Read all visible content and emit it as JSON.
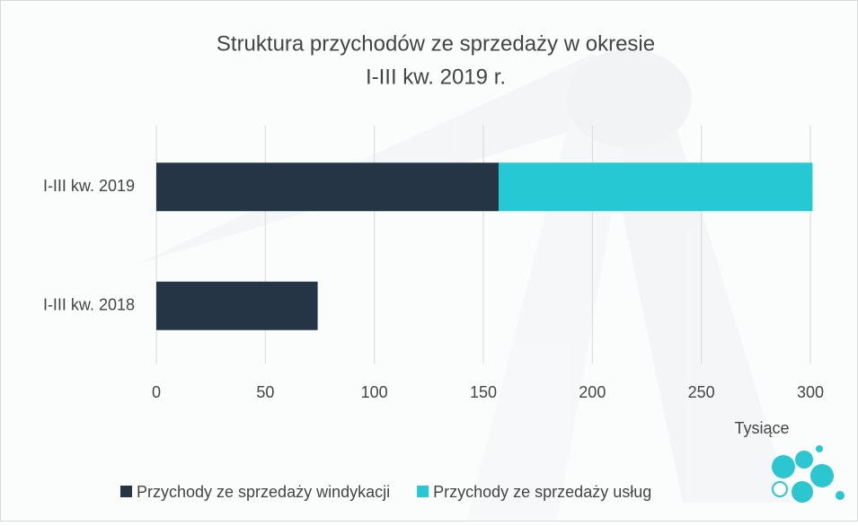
{
  "chart_data": {
    "type": "stacked_bar_horizontal",
    "title": [
      "Struktura przychodów ze sprzedaży w okresie",
      "I-III kw. 2019 r."
    ],
    "categories": [
      "I-III kw. 2019",
      "I-III kw. 2018"
    ],
    "series": [
      {
        "name": "Przychody ze sprzedaży windykacji",
        "color": "#253546",
        "values": [
          157,
          74
        ]
      },
      {
        "name": "Przychody ze sprzedaży usług",
        "color": "#26c9d3",
        "values": [
          144,
          null
        ]
      }
    ],
    "xlim": [
      0,
      300
    ],
    "xticks": [
      0,
      50,
      100,
      150,
      200,
      250,
      300
    ],
    "x_axis_label": "Tysiące",
    "grid": true,
    "legend": "bottom"
  }
}
